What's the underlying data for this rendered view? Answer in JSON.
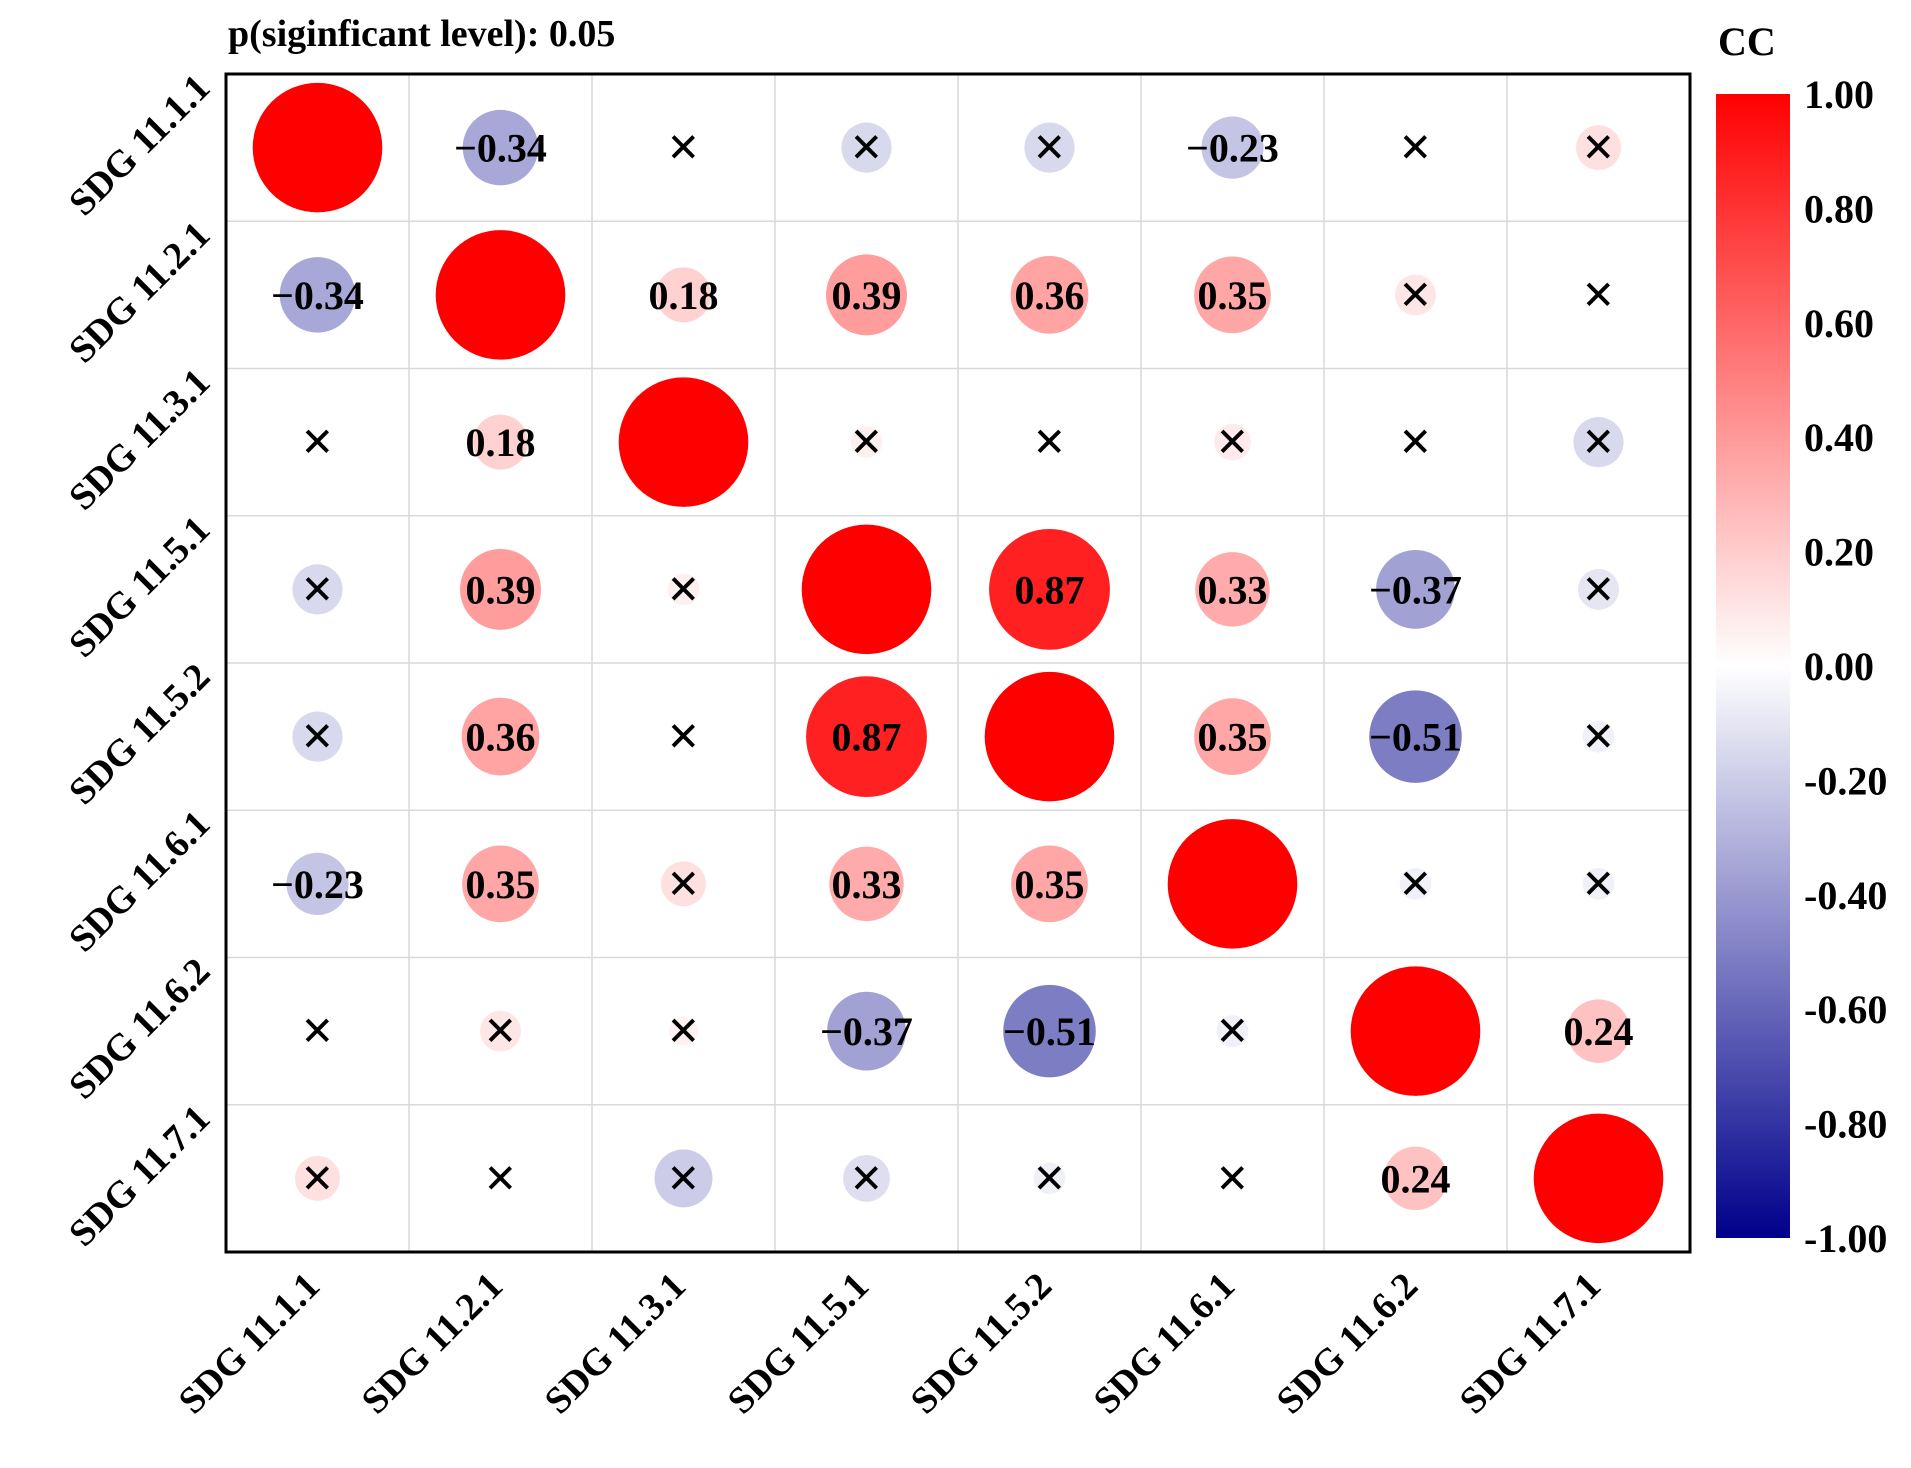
{
  "header": {
    "title": "p(siginficant level): 0.05"
  },
  "colorbar": {
    "title": "CC",
    "ticks": [
      "1.00",
      "0.80",
      "0.60",
      "0.40",
      "0.20",
      "0.00",
      "-0.20",
      "-0.40",
      "-0.60",
      "-0.80",
      "-1.00"
    ],
    "colors": {
      "high": "#ff0000",
      "mid": "#ffffff",
      "low": "#00008b"
    }
  },
  "chart_data": {
    "type": "heatmap",
    "subtype": "correlation-circle-matrix",
    "title": "p(siginficant level): 0.05",
    "legend_title": "CC",
    "legend_position": "right",
    "range": [
      -1,
      1
    ],
    "row_labels": [
      "SDG 11.1.1",
      "SDG 11.2.1",
      "SDG 11.3.1",
      "SDG 11.5.1",
      "SDG 11.5.2",
      "SDG 11.6.1",
      "SDG 11.6.2",
      "SDG 11.7.1"
    ],
    "col_labels": [
      "SDG 11.1.1",
      "SDG 11.2.1",
      "SDG 11.3.1",
      "SDG 11.5.1",
      "SDG 11.5.2",
      "SDG 11.6.1",
      "SDG 11.6.2",
      "SDG 11.7.1"
    ],
    "values": [
      [
        1.0,
        -0.34,
        0.0,
        -0.15,
        -0.15,
        -0.23,
        0.0,
        0.12
      ],
      [
        -0.34,
        1.0,
        0.18,
        0.39,
        0.36,
        0.35,
        0.1,
        0.0
      ],
      [
        0.0,
        0.18,
        1.0,
        0.06,
        0.0,
        0.08,
        0.0,
        -0.15
      ],
      [
        -0.15,
        0.39,
        0.06,
        1.0,
        0.87,
        0.33,
        -0.37,
        -0.1
      ],
      [
        -0.15,
        0.36,
        0.0,
        0.87,
        1.0,
        0.35,
        -0.51,
        -0.06
      ],
      [
        -0.23,
        0.35,
        0.12,
        0.33,
        0.35,
        1.0,
        -0.06,
        -0.06
      ],
      [
        0.0,
        0.1,
        0.05,
        -0.37,
        -0.51,
        -0.06,
        1.0,
        0.24
      ],
      [
        0.12,
        0.0,
        -0.2,
        -0.13,
        -0.06,
        0.0,
        0.24,
        1.0
      ]
    ],
    "significant": [
      [
        false,
        true,
        false,
        false,
        false,
        true,
        false,
        false
      ],
      [
        true,
        false,
        true,
        true,
        true,
        true,
        false,
        false
      ],
      [
        false,
        true,
        false,
        false,
        false,
        false,
        false,
        false
      ],
      [
        false,
        true,
        false,
        false,
        true,
        true,
        true,
        false
      ],
      [
        false,
        true,
        false,
        true,
        false,
        true,
        true,
        false
      ],
      [
        true,
        true,
        false,
        true,
        true,
        false,
        false,
        false
      ],
      [
        false,
        false,
        false,
        true,
        true,
        false,
        false,
        true
      ],
      [
        false,
        false,
        false,
        false,
        false,
        false,
        true,
        false
      ]
    ],
    "cell_labels": [
      [
        "",
        "−0.34",
        "",
        "",
        "",
        "−0.23",
        "",
        ""
      ],
      [
        "−0.34",
        "",
        "0.18",
        "0.39",
        "0.36",
        "0.35",
        "",
        ""
      ],
      [
        "",
        "0.18",
        "",
        "",
        "",
        "",
        "",
        ""
      ],
      [
        "",
        "0.39",
        "",
        "",
        "0.87",
        "0.33",
        "−0.37",
        ""
      ],
      [
        "",
        "0.36",
        "",
        "0.87",
        "",
        "0.35",
        "−0.51",
        ""
      ],
      [
        "−0.23",
        "0.35",
        "",
        "0.33",
        "0.35",
        "",
        "",
        ""
      ],
      [
        "",
        "",
        "",
        "−0.37",
        "−0.51",
        "",
        "",
        "0.24"
      ],
      [
        "",
        "",
        "",
        "",
        "",
        "",
        "0.24",
        ""
      ]
    ],
    "insignificant_marker": "×"
  }
}
